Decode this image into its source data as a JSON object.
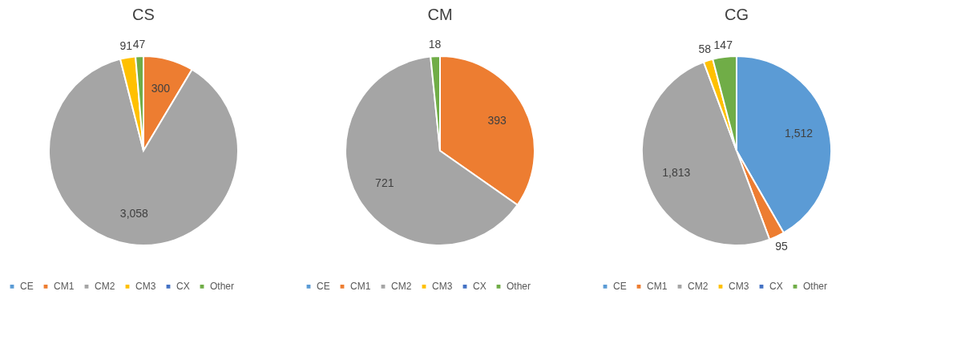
{
  "chart_data": [
    {
      "type": "pie",
      "title": "CS",
      "categories": [
        "CE",
        "CM1",
        "CM2",
        "CM3",
        "CX",
        "Other"
      ],
      "values": [
        null,
        300,
        3058,
        91,
        null,
        47
      ],
      "value_labels": [
        null,
        "300",
        "3,058",
        "91",
        null,
        "47"
      ],
      "colors": [
        "#5b9bd5",
        "#ed7d31",
        "#a5a5a5",
        "#ffc000",
        "#4472c4",
        "#70ad47"
      ],
      "legend": "bottom"
    },
    {
      "type": "pie",
      "title": "CM",
      "categories": [
        "CE",
        "CM1",
        "CM2",
        "CM3",
        "CX",
        "Other"
      ],
      "values": [
        null,
        393,
        721,
        null,
        null,
        18
      ],
      "value_labels": [
        null,
        "393",
        "721",
        null,
        null,
        "18"
      ],
      "colors": [
        "#5b9bd5",
        "#ed7d31",
        "#a5a5a5",
        "#ffc000",
        "#4472c4",
        "#70ad47"
      ],
      "legend": "bottom"
    },
    {
      "type": "pie",
      "title": "CG",
      "categories": [
        "CE",
        "CM1",
        "CM2",
        "CM3",
        "CX",
        "Other"
      ],
      "values": [
        1512,
        95,
        1813,
        58,
        null,
        147
      ],
      "value_labels": [
        "1,512",
        "95",
        "1,813",
        "58",
        null,
        "147"
      ],
      "colors": [
        "#5b9bd5",
        "#ed7d31",
        "#a5a5a5",
        "#ffc000",
        "#4472c4",
        "#70ad47"
      ],
      "legend": "bottom"
    }
  ]
}
